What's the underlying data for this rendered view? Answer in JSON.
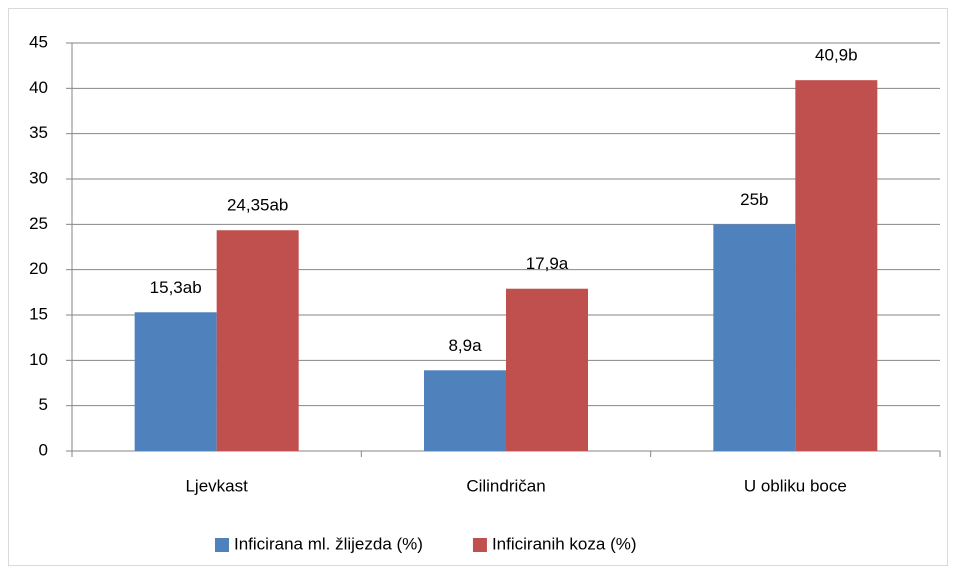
{
  "chart_data": {
    "type": "bar",
    "categories": [
      "Ljevkast",
      "Cilindričan",
      "U obliku boce"
    ],
    "series": [
      {
        "name": "Inficirana ml. žlijezda (%)",
        "color": "#4f81bd",
        "values": [
          15.3,
          8.9,
          25
        ],
        "value_labels": [
          "15,3ab",
          "8,9a",
          "25b"
        ]
      },
      {
        "name": "Inficiranih koza (%)",
        "color": "#c0504d",
        "values": [
          24.35,
          17.9,
          40.9
        ],
        "value_labels": [
          "24,35ab",
          "17,9a",
          "40,9b"
        ]
      }
    ],
    "ylim": [
      0,
      45
    ],
    "yticks": [
      0,
      5,
      10,
      15,
      20,
      25,
      30,
      35,
      40,
      45
    ],
    "grid": true,
    "legend": "bottom"
  }
}
